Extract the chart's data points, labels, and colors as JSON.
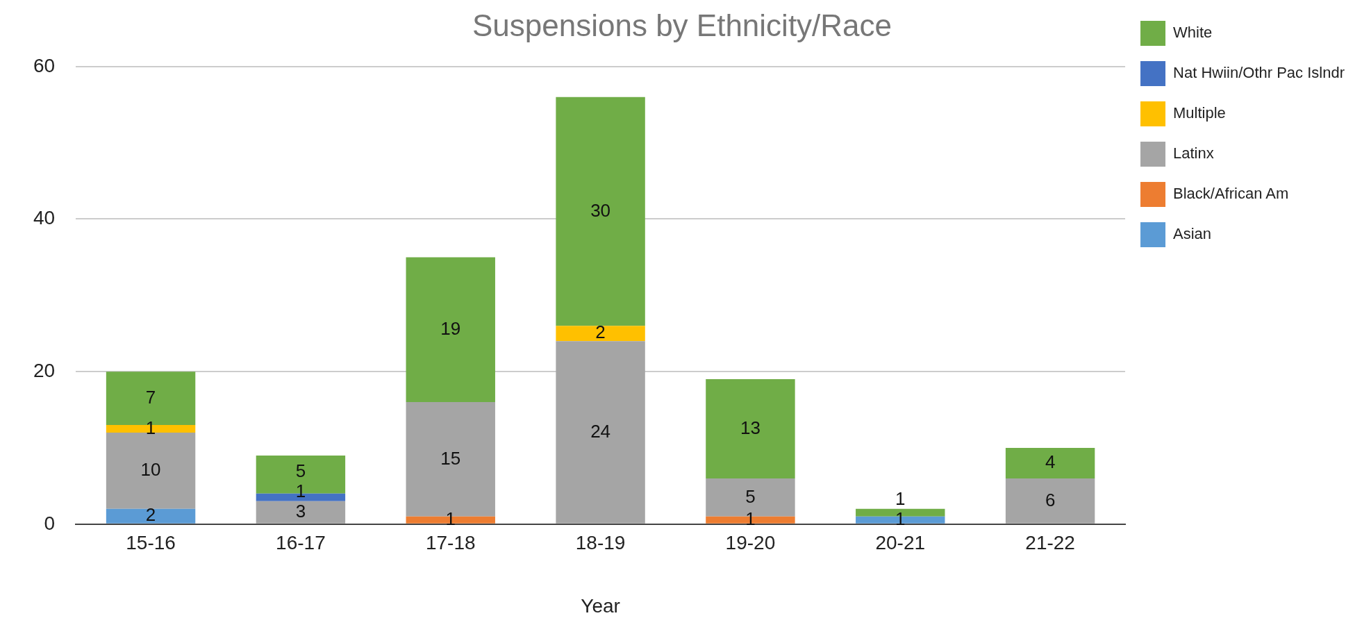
{
  "chart_data": {
    "type": "bar",
    "title": "Suspensions by Ethnicity/Race",
    "xlabel": "Year",
    "categories": [
      "15-16",
      "16-17",
      "17-18",
      "18-19",
      "19-20",
      "20-21",
      "21-22"
    ],
    "stacked": true,
    "data_labels": true,
    "ylim": [
      0,
      60
    ],
    "yticks": [
      0,
      20,
      40,
      60
    ],
    "grid": "y",
    "legend": "right",
    "series": [
      {
        "name": "Asian",
        "color": "#5b9bd5",
        "values": [
          2,
          null,
          null,
          null,
          null,
          1,
          null
        ]
      },
      {
        "name": "Black/African Am",
        "color": "#ed7d31",
        "values": [
          null,
          null,
          1,
          null,
          1,
          null,
          null
        ]
      },
      {
        "name": "Latinx",
        "color": "#a5a5a5",
        "values": [
          10,
          3,
          15,
          24,
          5,
          null,
          6
        ]
      },
      {
        "name": "Multiple",
        "color": "#ffc000",
        "values": [
          1,
          null,
          null,
          2,
          null,
          null,
          null
        ]
      },
      {
        "name": "Nat Hwiin/Othr Pac Islndr",
        "color": "#4472c4",
        "values": [
          null,
          1,
          null,
          null,
          null,
          null,
          null
        ]
      },
      {
        "name": "White",
        "color": "#70ad47",
        "values": [
          7,
          5,
          19,
          30,
          13,
          1,
          4
        ]
      }
    ]
  }
}
